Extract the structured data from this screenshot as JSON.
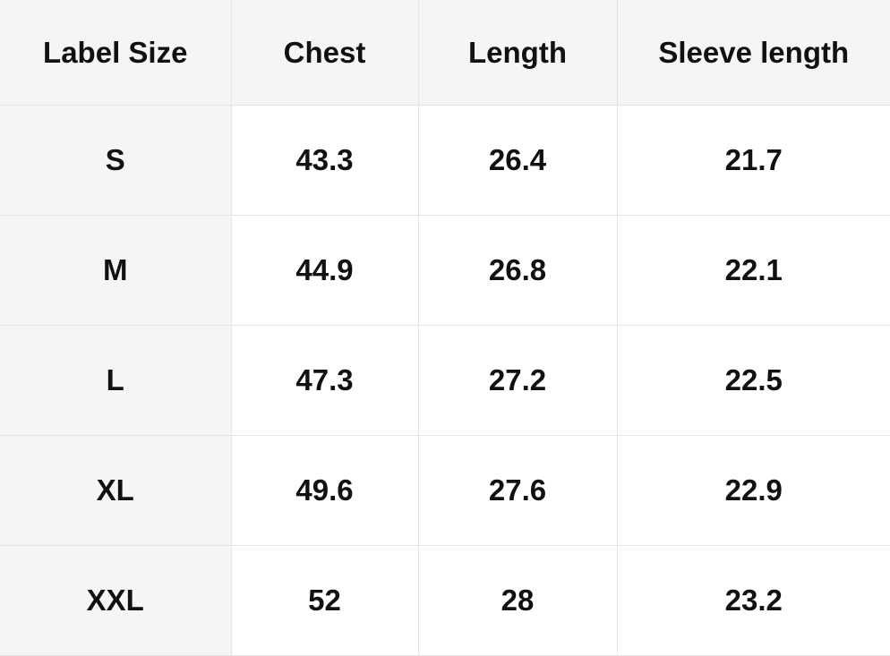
{
  "table": {
    "headers": [
      "Label Size",
      "Chest",
      "Length",
      "Sleeve length"
    ],
    "rows": [
      [
        "S",
        "43.3",
        "26.4",
        "21.7"
      ],
      [
        "M",
        "44.9",
        "26.8",
        "22.1"
      ],
      [
        "L",
        "47.3",
        "27.2",
        "22.5"
      ],
      [
        "XL",
        "49.6",
        "27.6",
        "22.9"
      ],
      [
        "XXL",
        "52",
        "28",
        "23.2"
      ]
    ]
  },
  "colors": {
    "header_bg": "#f5f5f5",
    "border": "#e4e4e4",
    "text": "#111111"
  }
}
